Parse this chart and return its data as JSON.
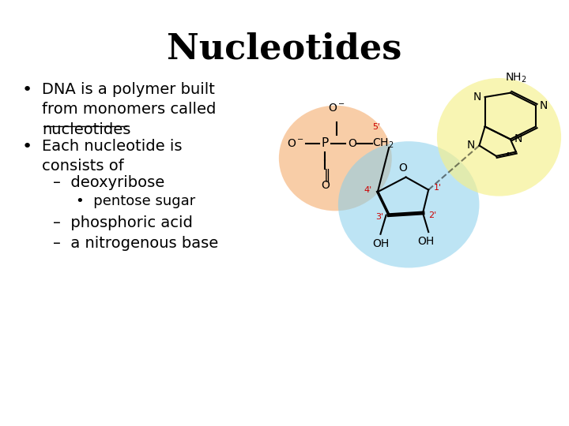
{
  "title": "Nucleotides",
  "title_fontsize": 32,
  "title_fontweight": "bold",
  "background_color": "#ffffff",
  "bullet_points": [
    "DNA is a polymer built\nfrom monomers called\nnucleotides",
    "Each nucleotide is\nconsists of"
  ],
  "sub_bullets": [
    "–  deoxyribose",
    "    •  pentose sugar",
    "–  phosphoric acid",
    "–  a nitrogenous base"
  ],
  "nucleotides_underline": "nucleotides",
  "phosphate_circle_color": "#f4a460",
  "phosphate_circle_alpha": 0.55,
  "sugar_circle_color": "#87ceeb",
  "sugar_circle_alpha": 0.55,
  "base_circle_color": "#f5f08a",
  "base_circle_alpha": 0.65,
  "text_color_black": "#000000",
  "text_color_red": "#cc0000",
  "body_fontsize": 14
}
